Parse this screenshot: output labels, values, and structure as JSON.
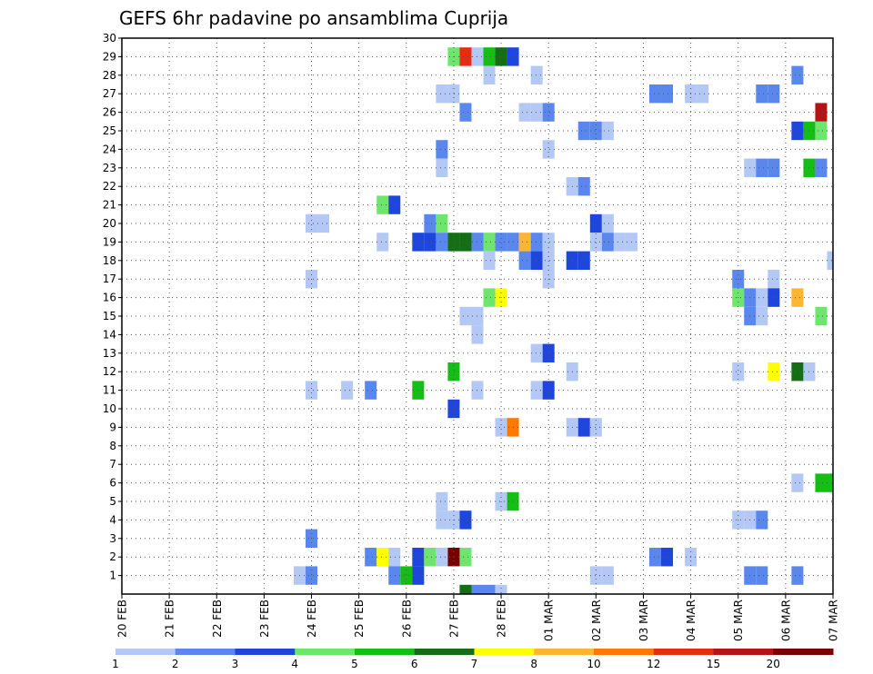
{
  "chart_data": {
    "type": "heatmap",
    "title": "GEFS 6hr padavine po ansamblima Cuprija",
    "xlabel": "",
    "ylabel": "",
    "x_ticks": [
      "20 FEB",
      "21 FEB",
      "22 FEB",
      "23 FEB",
      "24 FEB",
      "25 FEB",
      "26 FEB",
      "27 FEB",
      "28 FEB",
      "01 MAR",
      "02 MAR",
      "03 MAR",
      "04 MAR",
      "05 MAR",
      "06 MAR",
      "07 MAR"
    ],
    "y_ticks": [
      "1",
      "2",
      "3",
      "4",
      "5",
      "6",
      "7",
      "8",
      "9",
      "10",
      "11",
      "12",
      "13",
      "14",
      "15",
      "16",
      "17",
      "18",
      "19",
      "20",
      "21",
      "22",
      "23",
      "24",
      "25",
      "26",
      "27",
      "28",
      "29",
      "30"
    ],
    "x_range_steps": [
      0,
      60
    ],
    "y_range": [
      0,
      30
    ],
    "grid": true,
    "legend_placement": "bottom",
    "legend": {
      "levels": [
        "1",
        "2",
        "3",
        "4",
        "5",
        "6",
        "7",
        "8",
        "10",
        "12",
        "15",
        "20"
      ],
      "colors": [
        "#b4c8f5",
        "#5a87ee",
        "#1e46dc",
        "#6ee66e",
        "#14be14",
        "#146e14",
        "#ffff00",
        "#ffb432",
        "#ff7800",
        "#e62d14",
        "#b41414",
        "#780000"
      ]
    },
    "cells": [
      [
        28,
        29,
        "#6ee66e"
      ],
      [
        29,
        29,
        "#e62d14"
      ],
      [
        30,
        29,
        "#b4c8f5"
      ],
      [
        31,
        29,
        "#14be14"
      ],
      [
        32,
        29,
        "#146e14"
      ],
      [
        33,
        29,
        "#1e46dc"
      ],
      [
        31,
        28,
        "#b4c8f5"
      ],
      [
        35,
        28,
        "#b4c8f5"
      ],
      [
        57,
        28,
        "#5a87ee"
      ],
      [
        27,
        27,
        "#b4c8f5"
      ],
      [
        28,
        27,
        "#b4c8f5"
      ],
      [
        45,
        27,
        "#5a87ee"
      ],
      [
        46,
        27,
        "#5a87ee"
      ],
      [
        48,
        27,
        "#b4c8f5"
      ],
      [
        49,
        27,
        "#b4c8f5"
      ],
      [
        54,
        27,
        "#5a87ee"
      ],
      [
        55,
        27,
        "#5a87ee"
      ],
      [
        29,
        26,
        "#5a87ee"
      ],
      [
        34,
        26,
        "#b4c8f5"
      ],
      [
        35,
        26,
        "#b4c8f5"
      ],
      [
        36,
        26,
        "#5a87ee"
      ],
      [
        59,
        26,
        "#b41414"
      ],
      [
        39,
        25,
        "#5a87ee"
      ],
      [
        40,
        25,
        "#5a87ee"
      ],
      [
        41,
        25,
        "#b4c8f5"
      ],
      [
        57,
        25,
        "#1e46dc"
      ],
      [
        58,
        25,
        "#14be14"
      ],
      [
        59,
        25,
        "#6ee66e"
      ],
      [
        27,
        24,
        "#5a87ee"
      ],
      [
        36,
        24,
        "#b4c8f5"
      ],
      [
        27,
        23,
        "#b4c8f5"
      ],
      [
        53,
        23,
        "#b4c8f5"
      ],
      [
        54,
        23,
        "#5a87ee"
      ],
      [
        55,
        23,
        "#5a87ee"
      ],
      [
        58,
        23,
        "#14be14"
      ],
      [
        59,
        23,
        "#5a87ee"
      ],
      [
        38,
        22,
        "#b4c8f5"
      ],
      [
        39,
        22,
        "#5a87ee"
      ],
      [
        22,
        21,
        "#6ee66e"
      ],
      [
        23,
        21,
        "#1e46dc"
      ],
      [
        16,
        20,
        "#b4c8f5"
      ],
      [
        17,
        20,
        "#b4c8f5"
      ],
      [
        26,
        20,
        "#5a87ee"
      ],
      [
        27,
        20,
        "#6ee66e"
      ],
      [
        40,
        20,
        "#1e46dc"
      ],
      [
        41,
        20,
        "#b4c8f5"
      ],
      [
        22,
        19,
        "#b4c8f5"
      ],
      [
        25,
        19,
        "#1e46dc"
      ],
      [
        26,
        19,
        "#1e46dc"
      ],
      [
        27,
        19,
        "#5a87ee"
      ],
      [
        28,
        19,
        "#146e14"
      ],
      [
        29,
        19,
        "#146e14"
      ],
      [
        30,
        19,
        "#5a87ee"
      ],
      [
        31,
        19,
        "#6ee66e"
      ],
      [
        32,
        19,
        "#5a87ee"
      ],
      [
        33,
        19,
        "#5a87ee"
      ],
      [
        34,
        19,
        "#ffb432"
      ],
      [
        35,
        19,
        "#5a87ee"
      ],
      [
        36,
        19,
        "#b4c8f5"
      ],
      [
        40,
        19,
        "#b4c8f5"
      ],
      [
        41,
        19,
        "#5a87ee"
      ],
      [
        42,
        19,
        "#b4c8f5"
      ],
      [
        43,
        19,
        "#b4c8f5"
      ],
      [
        31,
        18,
        "#b4c8f5"
      ],
      [
        34,
        18,
        "#5a87ee"
      ],
      [
        35,
        18,
        "#1e46dc"
      ],
      [
        36,
        18,
        "#b4c8f5"
      ],
      [
        38,
        18,
        "#1e46dc"
      ],
      [
        39,
        18,
        "#1e46dc"
      ],
      [
        60,
        18,
        "#b4c8f5"
      ],
      [
        16,
        17,
        "#b4c8f5"
      ],
      [
        36,
        17,
        "#b4c8f5"
      ],
      [
        52,
        17,
        "#5a87ee"
      ],
      [
        55,
        17,
        "#b4c8f5"
      ],
      [
        31,
        16,
        "#6ee66e"
      ],
      [
        32,
        16,
        "#ffff00"
      ],
      [
        52,
        16,
        "#6ee66e"
      ],
      [
        53,
        16,
        "#5a87ee"
      ],
      [
        54,
        16,
        "#b4c8f5"
      ],
      [
        55,
        16,
        "#1e46dc"
      ],
      [
        57,
        16,
        "#ffb432"
      ],
      [
        29,
        15,
        "#b4c8f5"
      ],
      [
        30,
        15,
        "#b4c8f5"
      ],
      [
        53,
        15,
        "#5a87ee"
      ],
      [
        54,
        15,
        "#b4c8f5"
      ],
      [
        59,
        15,
        "#6ee66e"
      ],
      [
        30,
        14,
        "#b4c8f5"
      ],
      [
        35,
        13,
        "#b4c8f5"
      ],
      [
        36,
        13,
        "#1e46dc"
      ],
      [
        28,
        12,
        "#14be14"
      ],
      [
        38,
        12,
        "#b4c8f5"
      ],
      [
        52,
        12,
        "#b4c8f5"
      ],
      [
        55,
        12,
        "#ffff00"
      ],
      [
        57,
        12,
        "#146e14"
      ],
      [
        58,
        12,
        "#b4c8f5"
      ],
      [
        16,
        11,
        "#b4c8f5"
      ],
      [
        19,
        11,
        "#b4c8f5"
      ],
      [
        21,
        11,
        "#5a87ee"
      ],
      [
        25,
        11,
        "#14be14"
      ],
      [
        30,
        11,
        "#b4c8f5"
      ],
      [
        35,
        11,
        "#b4c8f5"
      ],
      [
        36,
        11,
        "#1e46dc"
      ],
      [
        28,
        10,
        "#1e46dc"
      ],
      [
        32,
        9,
        "#b4c8f5"
      ],
      [
        33,
        9,
        "#ff7800"
      ],
      [
        38,
        9,
        "#b4c8f5"
      ],
      [
        39,
        9,
        "#1e46dc"
      ],
      [
        40,
        9,
        "#b4c8f5"
      ],
      [
        57,
        6,
        "#b4c8f5"
      ],
      [
        59,
        6,
        "#14be14"
      ],
      [
        60,
        6,
        "#14be14"
      ],
      [
        27,
        5,
        "#b4c8f5"
      ],
      [
        32,
        5,
        "#b4c8f5"
      ],
      [
        33,
        5,
        "#14be14"
      ],
      [
        27,
        4,
        "#b4c8f5"
      ],
      [
        28,
        4,
        "#b4c8f5"
      ],
      [
        29,
        4,
        "#1e46dc"
      ],
      [
        52,
        4,
        "#b4c8f5"
      ],
      [
        53,
        4,
        "#b4c8f5"
      ],
      [
        54,
        4,
        "#5a87ee"
      ],
      [
        16,
        3,
        "#5a87ee"
      ],
      [
        21,
        2,
        "#5a87ee"
      ],
      [
        22,
        2,
        "#ffff00"
      ],
      [
        23,
        2,
        "#b4c8f5"
      ],
      [
        25,
        2,
        "#1e46dc"
      ],
      [
        26,
        2,
        "#6ee66e"
      ],
      [
        27,
        2,
        "#b4c8f5"
      ],
      [
        28,
        2,
        "#780000"
      ],
      [
        29,
        2,
        "#6ee66e"
      ],
      [
        45,
        2,
        "#5a87ee"
      ],
      [
        46,
        2,
        "#1e46dc"
      ],
      [
        48,
        2,
        "#b4c8f5"
      ],
      [
        15,
        1,
        "#b4c8f5"
      ],
      [
        16,
        1,
        "#5a87ee"
      ],
      [
        23,
        1,
        "#5a87ee"
      ],
      [
        24,
        1,
        "#14be14"
      ],
      [
        25,
        1,
        "#1e46dc"
      ],
      [
        40,
        1,
        "#b4c8f5"
      ],
      [
        41,
        1,
        "#b4c8f5"
      ],
      [
        53,
        1,
        "#5a87ee"
      ],
      [
        54,
        1,
        "#5a87ee"
      ],
      [
        57,
        1,
        "#5a87ee"
      ],
      [
        29,
        0,
        "#146e14"
      ],
      [
        30,
        0,
        "#5a87ee"
      ],
      [
        31,
        0,
        "#5a87ee"
      ],
      [
        32,
        0,
        "#b4c8f5"
      ]
    ]
  }
}
